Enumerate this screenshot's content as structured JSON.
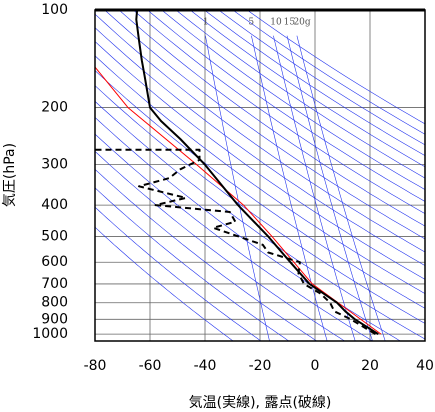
{
  "chart_data": {
    "type": "emagram",
    "xlabel": "気温(実線), 露点(破線)",
    "ylabel": "気圧(hPa)",
    "xlim": [
      -80,
      40
    ],
    "xticks": [
      -80,
      -60,
      -40,
      -20,
      0,
      20,
      40
    ],
    "ylim": [
      100,
      1050
    ],
    "yticks": [
      100,
      200,
      300,
      400,
      500,
      600,
      700,
      800,
      900,
      1000
    ],
    "log_y": true,
    "grid": true,
    "dry_adiabats": [
      240,
      250,
      260,
      270,
      280,
      290,
      300,
      310,
      320,
      330,
      340,
      350,
      360,
      370,
      380,
      390,
      400,
      410,
      420,
      430,
      440,
      450,
      460,
      470,
      480
    ],
    "mixing_ratio_lines": [
      1,
      5,
      10,
      15,
      {
        "value": 20,
        "label": "20g"
      }
    ],
    "series": [
      {
        "color": "#ff0000",
        "dash": false,
        "width": 1,
        "pressure": [
          1000,
          700,
          500,
          400,
          300,
          200,
          150
        ],
        "values": [
          24,
          -1,
          -15.6,
          -26,
          -43,
          -68,
          -80
        ]
      },
      {
        "color": "#000000",
        "dash": false,
        "width": 2,
        "pressure": [
          1000,
          900,
          850,
          800,
          700,
          600,
          500,
          400,
          300,
          250,
          220,
          200,
          159,
          143,
          124,
          107,
          100
        ],
        "values": [
          23,
          14.5,
          11,
          8,
          -2,
          -9,
          -17,
          -28,
          -40,
          -49,
          -56,
          -60,
          -62,
          -63,
          -64,
          -65,
          -64.7
        ]
      },
      {
        "color": "#000000",
        "dash": true,
        "width": 2,
        "pressure": [
          1000,
          900,
          850,
          800,
          750,
          700,
          650,
          600,
          560,
          530,
          470,
          450,
          420,
          400,
          380,
          350,
          330,
          310,
          290,
          270,
          270
        ],
        "values": [
          22,
          13,
          7,
          5.5,
          2,
          -4,
          -6,
          -5.5,
          -17,
          -19,
          -37,
          -29,
          -31,
          -58,
          -47,
          -64,
          -53,
          -49,
          -42,
          -42,
          -80
        ]
      }
    ]
  }
}
